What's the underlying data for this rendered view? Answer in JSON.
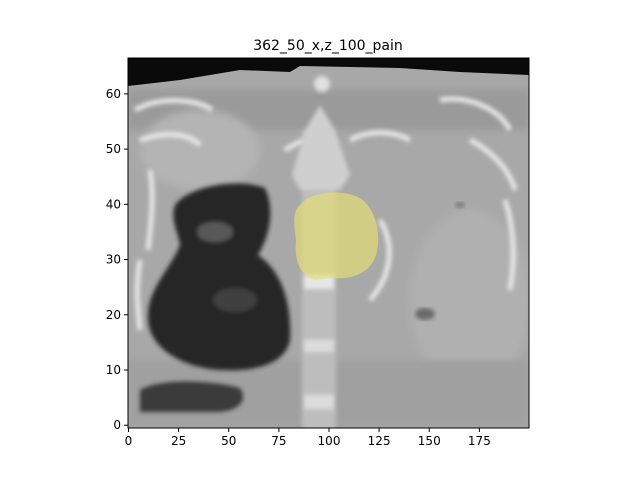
{
  "figure": {
    "title": "362_50_x,z_100_pain"
  },
  "chart_data": {
    "type": "heatmap",
    "title": "362_50_x,z_100_pain",
    "xlabel": "",
    "ylabel": "",
    "xlim": [
      0,
      199
    ],
    "ylim": [
      0,
      66
    ],
    "x_ticks": [
      0,
      25,
      50,
      75,
      100,
      125,
      150,
      175
    ],
    "y_ticks": [
      0,
      10,
      20,
      30,
      40,
      50,
      60
    ],
    "grid": false,
    "legend": "none",
    "overlay": {
      "label_color": "#e8e070",
      "center": [
        102,
        33
      ],
      "radius_x": 20,
      "radius_y": 9
    },
    "colors": {
      "tissue": "#a8a8a8",
      "air": "#0a0a0a",
      "lung": "#262626",
      "bone": "#e8e8e8"
    }
  }
}
